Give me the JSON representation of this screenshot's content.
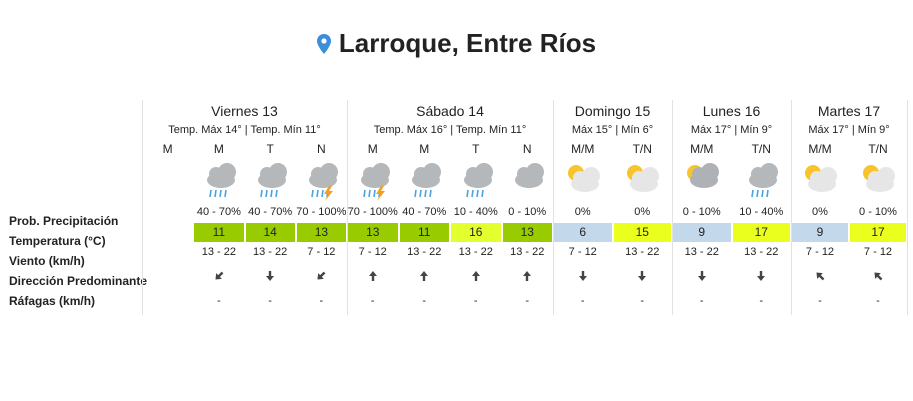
{
  "header": {
    "title": "Larroque, Entre Ríos"
  },
  "row_labels": [
    "Prob. Precipitación",
    "Temperatura (°C)",
    "Viento (km/h)",
    "Dirección Predominante",
    "Ráfagas (km/h)"
  ],
  "days": [
    {
      "name": "Viernes 13",
      "summary": "Temp. Máx 14° | Temp. Mín 11°",
      "periods": [
        {
          "label": "M"
        },
        {
          "label": "M",
          "precipitation": "40 - 70%",
          "temperature": "11",
          "wind": "13 - 22",
          "gusts": "-"
        },
        {
          "label": "T",
          "precipitation": "40 - 70%",
          "temperature": "14",
          "wind": "13 - 22",
          "gusts": "-"
        },
        {
          "label": "N",
          "precipitation": "70 - 100%",
          "temperature": "13",
          "wind": "7 - 12",
          "gusts": "-"
        }
      ]
    },
    {
      "name": "Sábado 14",
      "summary": "Temp. Máx 16° | Temp. Mín 11°",
      "periods": [
        {
          "label": "M",
          "precipitation": "70 - 100%",
          "temperature": "13",
          "wind": "7 - 12",
          "gusts": "-"
        },
        {
          "label": "M",
          "precipitation": "40 - 70%",
          "temperature": "11",
          "wind": "13 - 22",
          "gusts": "-"
        },
        {
          "label": "T",
          "precipitation": "10 - 40%",
          "temperature": "16",
          "wind": "13 - 22",
          "gusts": "-"
        },
        {
          "label": "N",
          "precipitation": "0 - 10%",
          "temperature": "13",
          "wind": "13 - 22",
          "gusts": "-"
        }
      ]
    },
    {
      "name": "Domingo 15",
      "summary": "Máx 15° | Mín 6°",
      "periods": [
        {
          "label": "M/M",
          "precipitation": "0%",
          "temperature": "6",
          "wind": "7 - 12",
          "gusts": "-"
        },
        {
          "label": "T/N",
          "precipitation": "0%",
          "temperature": "15",
          "wind": "13 - 22",
          "gusts": "-"
        }
      ]
    },
    {
      "name": "Lunes 16",
      "summary": "Máx 17° | Mín 9°",
      "periods": [
        {
          "label": "M/M",
          "precipitation": "0 - 10%",
          "temperature": "9",
          "wind": "13 - 22",
          "gusts": "-"
        },
        {
          "label": "T/N",
          "precipitation": "10 - 40%",
          "temperature": "17",
          "wind": "13 - 22",
          "gusts": "-"
        }
      ]
    },
    {
      "name": "Martes 17",
      "summary": "Máx 17° | Mín 9°",
      "periods": [
        {
          "label": "M/M",
          "precipitation": "0%",
          "temperature": "9",
          "wind": "7 - 12",
          "gusts": "-"
        },
        {
          "label": "T/N",
          "precipitation": "0 - 10%",
          "temperature": "17",
          "wind": "7 - 12",
          "gusts": "-"
        }
      ]
    }
  ]
}
